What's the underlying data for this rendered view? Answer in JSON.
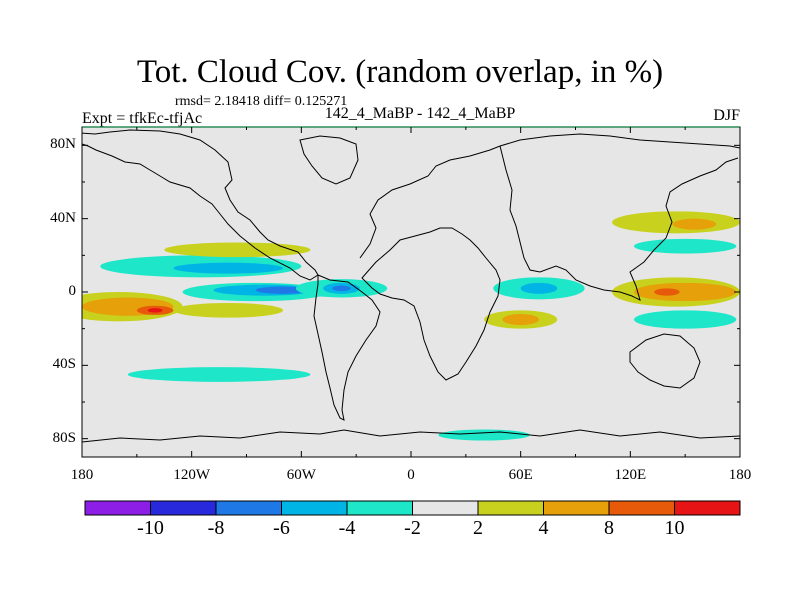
{
  "title": "Tot. Cloud Cov. (random overlap, in %)",
  "stats_text": "rmsd= 2.18418  diff= 0.125271",
  "expt_label": "Expt = tfkEc-tfjAc",
  "center_label": "142_4_MaBP - 142_4_MaBP",
  "season": "DJF",
  "map": {
    "projection": "cylindrical-equidistant",
    "lon_range": [
      -180,
      180
    ],
    "lat_range": [
      -90,
      90
    ],
    "background_color": "#e6e6e6",
    "coastline_color": "#000000",
    "y_ticks": [
      {
        "label": "80N",
        "lat": 80
      },
      {
        "label": "40N",
        "lat": 40
      },
      {
        "label": "0",
        "lat": 0
      },
      {
        "label": "40S",
        "lat": -40
      },
      {
        "label": "80S",
        "lat": -80
      }
    ],
    "x_ticks": [
      {
        "label": "180",
        "lon": -180
      },
      {
        "label": "120W",
        "lon": -120
      },
      {
        "label": "60W",
        "lon": -60
      },
      {
        "label": "0",
        "lon": 0
      },
      {
        "label": "60E",
        "lon": 60
      },
      {
        "label": "120E",
        "lon": 120
      },
      {
        "label": "180",
        "lon": 180
      }
    ]
  },
  "colorbar": {
    "colors": [
      "#8c1ee6",
      "#2828dc",
      "#1e78e6",
      "#00b4e6",
      "#1ee6c8",
      "#e6e6e6",
      "#c8d21e",
      "#e6a00a",
      "#e65a0a",
      "#e61414"
    ],
    "labels": [
      "-10",
      "-8",
      "-6",
      "-4",
      "-2",
      "2",
      "4",
      "8",
      "10"
    ]
  },
  "contours": [
    {
      "color": "#1ee6c8",
      "lon": -115,
      "lat": 14,
      "rx": 55,
      "ry": 6
    },
    {
      "color": "#00b4e6",
      "lon": -100,
      "lat": 13,
      "rx": 30,
      "ry": 3
    },
    {
      "color": "#1ee6c8",
      "lon": -85,
      "lat": 0,
      "rx": 40,
      "ry": 5
    },
    {
      "color": "#00b4e6",
      "lon": -80,
      "lat": 1,
      "rx": 28,
      "ry": 3
    },
    {
      "color": "#1e78e6",
      "lon": -70,
      "lat": 1,
      "rx": 15,
      "ry": 2
    },
    {
      "color": "#1ee6c8",
      "lon": -38,
      "lat": 2,
      "rx": 25,
      "ry": 5
    },
    {
      "color": "#00b4e6",
      "lon": -38,
      "lat": 2,
      "rx": 10,
      "ry": 3
    },
    {
      "color": "#1e78e6",
      "lon": -38,
      "lat": 2,
      "rx": 5,
      "ry": 1.5
    },
    {
      "color": "#1ee6c8",
      "lon": 70,
      "lat": 2,
      "rx": 25,
      "ry": 6
    },
    {
      "color": "#00b4e6",
      "lon": 70,
      "lat": 2,
      "rx": 10,
      "ry": 3
    },
    {
      "color": "#c8d21e",
      "lon": -160,
      "lat": -8,
      "rx": 35,
      "ry": 8
    },
    {
      "color": "#e6a00a",
      "lon": -155,
      "lat": -8,
      "rx": 25,
      "ry": 5
    },
    {
      "color": "#e65a0a",
      "lon": -140,
      "lat": -10,
      "rx": 10,
      "ry": 2.5
    },
    {
      "color": "#e61414",
      "lon": -140,
      "lat": -10,
      "rx": 4,
      "ry": 1.2
    },
    {
      "color": "#c8d21e",
      "lon": -100,
      "lat": -10,
      "rx": 30,
      "ry": 4
    },
    {
      "color": "#c8d21e",
      "lon": 145,
      "lat": 0,
      "rx": 35,
      "ry": 8
    },
    {
      "color": "#e6a00a",
      "lon": 150,
      "lat": 0,
      "rx": 28,
      "ry": 5
    },
    {
      "color": "#e65a0a",
      "lon": 140,
      "lat": 0,
      "rx": 7,
      "ry": 2
    },
    {
      "color": "#c8d21e",
      "lon": 60,
      "lat": -15,
      "rx": 20,
      "ry": 5
    },
    {
      "color": "#e6a00a",
      "lon": 60,
      "lat": -15,
      "rx": 10,
      "ry": 3
    },
    {
      "color": "#c8d21e",
      "lon": 145,
      "lat": 38,
      "rx": 35,
      "ry": 6
    },
    {
      "color": "#e6a00a",
      "lon": 155,
      "lat": 37,
      "rx": 12,
      "ry": 3
    },
    {
      "color": "#1ee6c8",
      "lon": 150,
      "lat": 25,
      "rx": 28,
      "ry": 4
    },
    {
      "color": "#c8d21e",
      "lon": -95,
      "lat": 23,
      "rx": 40,
      "ry": 4
    },
    {
      "color": "#1ee6c8",
      "lon": 150,
      "lat": -15,
      "rx": 28,
      "ry": 5
    },
    {
      "color": "#1ee6c8",
      "lon": -105,
      "lat": -45,
      "rx": 50,
      "ry": 4
    },
    {
      "color": "#1ee6c8",
      "lon": 40,
      "lat": -78,
      "rx": 25,
      "ry": 3
    }
  ]
}
